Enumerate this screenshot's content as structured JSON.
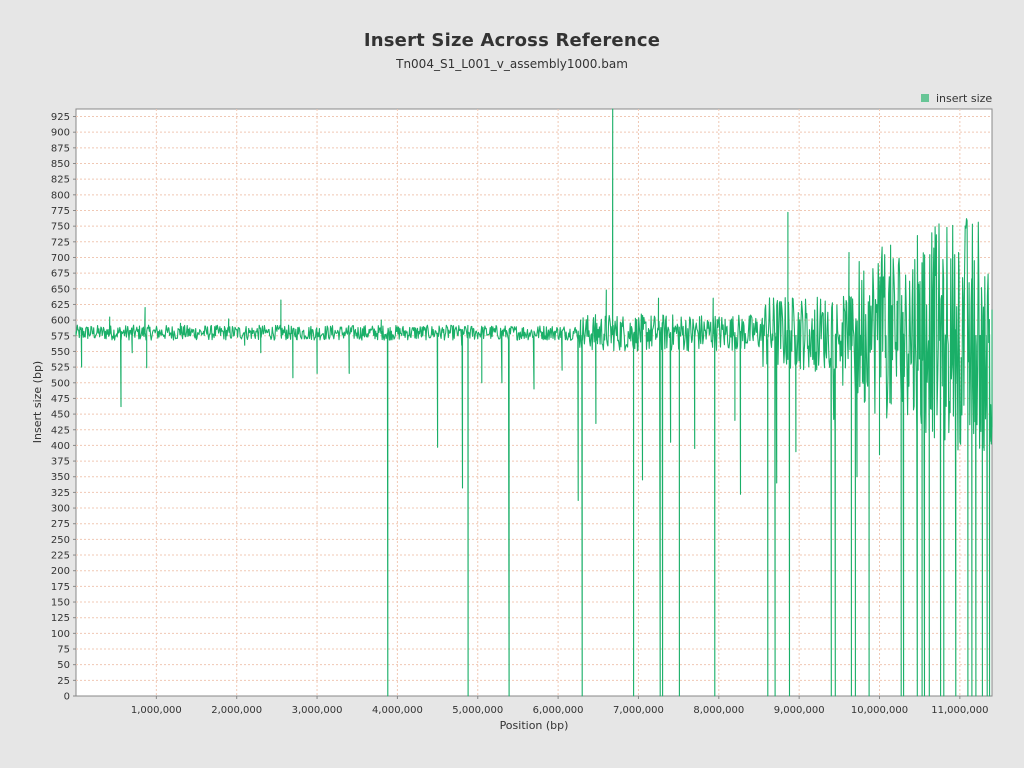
{
  "chart_data": {
    "type": "line",
    "title": "Insert Size Across Reference",
    "subtitle": "Tn004_S1_L001_v_assembly1000.bam",
    "xlabel": "Position (bp)",
    "ylabel": "Insert size (bp)",
    "xlim": [
      0,
      11400000
    ],
    "ylim": [
      0,
      937
    ],
    "x_ticks": [
      1000000,
      2000000,
      3000000,
      4000000,
      5000000,
      6000000,
      7000000,
      8000000,
      9000000,
      10000000,
      11000000
    ],
    "x_tick_labels": [
      "1,000,000",
      "2,000,000",
      "3,000,000",
      "4,000,000",
      "5,000,000",
      "6,000,000",
      "7,000,000",
      "8,000,000",
      "9,000,000",
      "10,000,000",
      "11,000,000"
    ],
    "y_ticks": [
      0,
      25,
      50,
      75,
      100,
      125,
      150,
      175,
      200,
      225,
      250,
      275,
      300,
      325,
      350,
      375,
      400,
      425,
      450,
      475,
      500,
      525,
      550,
      575,
      600,
      625,
      650,
      675,
      700,
      725,
      750,
      775,
      800,
      825,
      850,
      875,
      900,
      925
    ],
    "y_tick_labels": [
      "0",
      "25",
      "50",
      "75",
      "100",
      "125",
      "150",
      "175",
      "200",
      "225",
      "250",
      "275",
      "300",
      "325",
      "350",
      "375",
      "400",
      "425",
      "450",
      "475",
      "500",
      "525",
      "550",
      "575",
      "600",
      "625",
      "650",
      "675",
      "700",
      "725",
      "750",
      "775",
      "800",
      "825",
      "850",
      "875",
      "900",
      "925"
    ],
    "grid": true,
    "legend_position": "top-right",
    "series": [
      {
        "name": "insert size",
        "color": "#1aaf68",
        "baseline": 580,
        "points": [
          [
            0,
            582
          ],
          [
            70000,
            525
          ],
          [
            150000,
            588
          ],
          [
            420000,
            605
          ],
          [
            560000,
            462
          ],
          [
            700000,
            548
          ],
          [
            860000,
            620
          ],
          [
            880000,
            524
          ],
          [
            1300000,
            595
          ],
          [
            1900000,
            602
          ],
          [
            2100000,
            560
          ],
          [
            2300000,
            548
          ],
          [
            2550000,
            632
          ],
          [
            2700000,
            508
          ],
          [
            3000000,
            515
          ],
          [
            3400000,
            515
          ],
          [
            3800000,
            600
          ],
          [
            3880000,
            0
          ],
          [
            4500000,
            397
          ],
          [
            4800000,
            560
          ],
          [
            4810000,
            332
          ],
          [
            4880000,
            0
          ],
          [
            5050000,
            500
          ],
          [
            5300000,
            500
          ],
          [
            5390000,
            0
          ],
          [
            5700000,
            490
          ],
          [
            6050000,
            520
          ],
          [
            6250000,
            312
          ],
          [
            6280000,
            600
          ],
          [
            6300000,
            0
          ],
          [
            6470000,
            435
          ],
          [
            6600000,
            648
          ],
          [
            6680000,
            940
          ],
          [
            6940000,
            0
          ],
          [
            7050000,
            345
          ],
          [
            7250000,
            635
          ],
          [
            7270000,
            0
          ],
          [
            7300000,
            0
          ],
          [
            7400000,
            405
          ],
          [
            7510000,
            0
          ],
          [
            7700000,
            395
          ],
          [
            7930000,
            635
          ],
          [
            7950000,
            0
          ],
          [
            8200000,
            440
          ],
          [
            8270000,
            322
          ],
          [
            8610000,
            0
          ],
          [
            8700000,
            0
          ],
          [
            8720000,
            340
          ],
          [
            8860000,
            772
          ],
          [
            8880000,
            0
          ],
          [
            8960000,
            390
          ],
          [
            9400000,
            0
          ],
          [
            9450000,
            0
          ],
          [
            9620000,
            708
          ],
          [
            9650000,
            0
          ],
          [
            9700000,
            0
          ],
          [
            9720000,
            350
          ],
          [
            9870000,
            0
          ],
          [
            10000000,
            385
          ],
          [
            10270000,
            0
          ],
          [
            10300000,
            0
          ],
          [
            10470000,
            0
          ],
          [
            10480000,
            660
          ],
          [
            10530000,
            0
          ],
          [
            10560000,
            0
          ],
          [
            10620000,
            0
          ],
          [
            10760000,
            0
          ],
          [
            10800000,
            0
          ],
          [
            10950000,
            0
          ],
          [
            10990000,
            675
          ],
          [
            11100000,
            0
          ],
          [
            11150000,
            0
          ],
          [
            11200000,
            0
          ],
          [
            11280000,
            0
          ],
          [
            11340000,
            0
          ],
          [
            11370000,
            0
          ],
          [
            11400000,
            430
          ]
        ]
      }
    ]
  }
}
